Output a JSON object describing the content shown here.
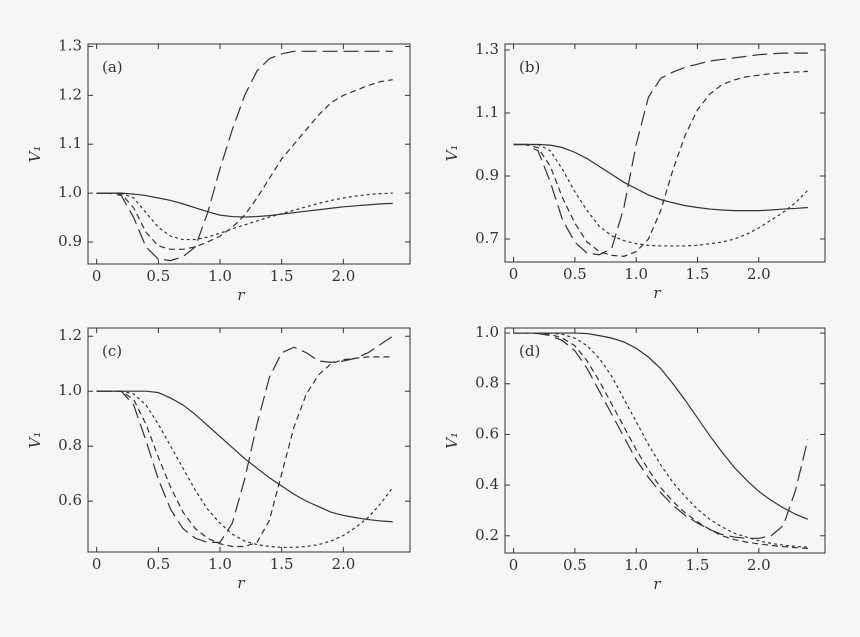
{
  "chart_data": [
    {
      "type": "line",
      "panel_label": "(a)",
      "x_label": "r",
      "y_label": "V₁",
      "x": [
        0,
        0.1,
        0.2,
        0.3,
        0.4,
        0.5,
        0.6,
        0.7,
        0.8,
        0.9,
        1.0,
        1.1,
        1.2,
        1.3,
        1.4,
        1.5,
        1.6,
        1.7,
        1.8,
        1.9,
        2.0,
        2.1,
        2.2,
        2.3,
        2.4
      ],
      "xlim": [
        -0.07,
        2.54
      ],
      "xticks": [
        0,
        0.5,
        {
          "value": 1,
          "label": "1.0"
        },
        1.5,
        {
          "value": 2,
          "label": "2.0"
        }
      ],
      "ylim": [
        0.855,
        1.305
      ],
      "yticks": [
        0.9,
        {
          "value": 1,
          "label": "1.0"
        },
        1.1,
        1.2,
        1.3
      ],
      "grid": false,
      "series": [
        {
          "color": "#333333",
          "dash": "solid",
          "values": [
            1.0,
            1.0,
            1.0,
            0.998,
            0.995,
            0.99,
            0.985,
            0.978,
            0.97,
            0.962,
            0.955,
            0.952,
            0.951,
            0.952,
            0.954,
            0.957,
            0.96,
            0.963,
            0.966,
            0.969,
            0.972,
            0.974,
            0.976,
            0.978,
            0.979
          ]
        },
        {
          "color": "#333333",
          "dash": "dotted",
          "values": [
            1.0,
            1.0,
            1.0,
            0.99,
            0.96,
            0.93,
            0.912,
            0.905,
            0.905,
            0.91,
            0.918,
            0.927,
            0.935,
            0.943,
            0.951,
            0.958,
            0.965,
            0.972,
            0.979,
            0.985,
            0.99,
            0.994,
            0.997,
            0.999,
            1.0
          ]
        },
        {
          "color": "#333333",
          "dash": "dashed",
          "values": [
            1.0,
            1.0,
            0.998,
            0.97,
            0.92,
            0.892,
            0.885,
            0.885,
            0.89,
            0.9,
            0.912,
            0.93,
            0.955,
            0.99,
            1.03,
            1.07,
            1.1,
            1.13,
            1.16,
            1.185,
            1.2,
            1.21,
            1.22,
            1.228,
            1.232
          ]
        },
        {
          "color": "#333333",
          "dash": "longdash",
          "values": [
            1.0,
            1.0,
            0.995,
            0.95,
            0.89,
            0.865,
            0.862,
            0.87,
            0.89,
            0.96,
            1.05,
            1.13,
            1.2,
            1.25,
            1.275,
            1.285,
            1.29,
            1.29,
            1.29,
            1.29,
            1.29,
            1.29,
            1.29,
            1.29,
            1.29
          ]
        }
      ]
    },
    {
      "type": "line",
      "panel_label": "(b)",
      "x_label": "r",
      "y_label": "V₁",
      "x": [
        0,
        0.1,
        0.2,
        0.3,
        0.4,
        0.5,
        0.6,
        0.7,
        0.8,
        0.9,
        1.0,
        1.1,
        1.2,
        1.3,
        1.4,
        1.5,
        1.6,
        1.7,
        1.8,
        1.9,
        2.0,
        2.1,
        2.2,
        2.3,
        2.4
      ],
      "xlim": [
        -0.07,
        2.54
      ],
      "xticks": [
        0,
        0.5,
        {
          "value": 1,
          "label": "1.0"
        },
        1.5,
        {
          "value": 2,
          "label": "2.0"
        }
      ],
      "ylim": [
        0.627,
        1.319
      ],
      "yticks": [
        0.7,
        0.9,
        1.1,
        1.3
      ],
      "grid": false,
      "series": [
        {
          "color": "#333333",
          "dash": "solid",
          "values": [
            1.0,
            1.0,
            1.0,
            0.998,
            0.99,
            0.975,
            0.955,
            0.93,
            0.905,
            0.88,
            0.86,
            0.84,
            0.825,
            0.815,
            0.806,
            0.8,
            0.795,
            0.792,
            0.79,
            0.79,
            0.79,
            0.792,
            0.795,
            0.797,
            0.8
          ]
        },
        {
          "color": "#333333",
          "dash": "dotted",
          "values": [
            1.0,
            1.0,
            1.0,
            0.98,
            0.92,
            0.85,
            0.79,
            0.74,
            0.71,
            0.695,
            0.685,
            0.68,
            0.678,
            0.678,
            0.678,
            0.68,
            0.685,
            0.69,
            0.7,
            0.715,
            0.735,
            0.76,
            0.785,
            0.815,
            0.855
          ]
        },
        {
          "color": "#333333",
          "dash": "dashed",
          "values": [
            1.0,
            1.0,
            0.99,
            0.93,
            0.83,
            0.75,
            0.69,
            0.66,
            0.648,
            0.645,
            0.66,
            0.7,
            0.79,
            0.92,
            1.03,
            1.11,
            1.16,
            1.19,
            1.205,
            1.215,
            1.22,
            1.225,
            1.228,
            1.23,
            1.232
          ]
        },
        {
          "color": "#333333",
          "dash": "longdash",
          "values": [
            1.0,
            1.0,
            0.98,
            0.88,
            0.76,
            0.69,
            0.655,
            0.65,
            0.67,
            0.8,
            1.0,
            1.15,
            1.21,
            1.23,
            1.245,
            1.255,
            1.265,
            1.27,
            1.275,
            1.28,
            1.285,
            1.288,
            1.29,
            1.29,
            1.29
          ]
        }
      ]
    },
    {
      "type": "line",
      "panel_label": "(c)",
      "x_label": "r",
      "y_label": "V₁",
      "x": [
        0,
        0.1,
        0.2,
        0.3,
        0.4,
        0.5,
        0.6,
        0.7,
        0.8,
        0.9,
        1.0,
        1.1,
        1.2,
        1.3,
        1.4,
        1.5,
        1.6,
        1.7,
        1.8,
        1.9,
        2.0,
        2.1,
        2.2,
        2.3,
        2.4
      ],
      "xlim": [
        -0.07,
        2.54
      ],
      "xticks": [
        0,
        0.5,
        {
          "value": 1,
          "label": "1.0"
        },
        1.5,
        {
          "value": 2,
          "label": "2.0"
        }
      ],
      "ylim": [
        0.415,
        1.23
      ],
      "yticks": [
        0.6,
        0.8,
        {
          "value": 1,
          "label": "1.0"
        },
        1.2
      ],
      "grid": false,
      "series": [
        {
          "color": "#333333",
          "dash": "solid",
          "values": [
            1.0,
            1.0,
            1.0,
            1.0,
            1.0,
            0.995,
            0.975,
            0.95,
            0.915,
            0.875,
            0.835,
            0.795,
            0.755,
            0.72,
            0.685,
            0.655,
            0.625,
            0.6,
            0.58,
            0.56,
            0.548,
            0.54,
            0.533,
            0.528,
            0.525
          ]
        },
        {
          "color": "#333333",
          "dash": "dotted",
          "values": [
            1.0,
            1.0,
            1.0,
            0.99,
            0.95,
            0.88,
            0.8,
            0.72,
            0.64,
            0.57,
            0.52,
            0.48,
            0.455,
            0.442,
            0.435,
            0.432,
            0.432,
            0.435,
            0.442,
            0.455,
            0.475,
            0.505,
            0.54,
            0.59,
            0.65
          ]
        },
        {
          "color": "#333333",
          "dash": "dashed",
          "values": [
            1.0,
            1.0,
            1.0,
            0.97,
            0.88,
            0.76,
            0.65,
            0.56,
            0.5,
            0.465,
            0.445,
            0.435,
            0.435,
            0.45,
            0.53,
            0.7,
            0.87,
            0.99,
            1.06,
            1.1,
            1.115,
            1.12,
            1.125,
            1.125,
            1.125
          ]
        },
        {
          "color": "#333333",
          "dash": "longdash",
          "values": [
            1.0,
            1.0,
            1.0,
            0.95,
            0.82,
            0.68,
            0.57,
            0.5,
            0.465,
            0.45,
            0.45,
            0.52,
            0.68,
            0.88,
            1.05,
            1.14,
            1.16,
            1.14,
            1.11,
            1.105,
            1.11,
            1.12,
            1.14,
            1.17,
            1.2
          ]
        }
      ]
    },
    {
      "type": "line",
      "panel_label": "(d)",
      "x_label": "r",
      "y_label": "V₁",
      "x": [
        0,
        0.1,
        0.2,
        0.3,
        0.4,
        0.5,
        0.6,
        0.7,
        0.8,
        0.9,
        1.0,
        1.1,
        1.2,
        1.3,
        1.4,
        1.5,
        1.6,
        1.7,
        1.8,
        1.9,
        2.0,
        2.1,
        2.2,
        2.3,
        2.4
      ],
      "xlim": [
        -0.07,
        2.54
      ],
      "xticks": [
        0,
        0.5,
        {
          "value": 1,
          "label": "1.0"
        },
        1.5,
        {
          "value": 2,
          "label": "2.0"
        }
      ],
      "ylim": [
        0.132,
        1.02
      ],
      "yticks": [
        0.2,
        0.4,
        0.6,
        0.8,
        {
          "value": 1,
          "label": "1.0"
        }
      ],
      "grid": false,
      "series": [
        {
          "color": "#333333",
          "dash": "solid",
          "values": [
            1.0,
            1.0,
            1.0,
            1.0,
            1.0,
            1.0,
            0.998,
            0.99,
            0.98,
            0.965,
            0.94,
            0.905,
            0.86,
            0.8,
            0.735,
            0.665,
            0.595,
            0.53,
            0.47,
            0.42,
            0.375,
            0.34,
            0.31,
            0.285,
            0.265
          ]
        },
        {
          "color": "#333333",
          "dash": "dotted",
          "values": [
            1.0,
            1.0,
            1.0,
            1.0,
            0.995,
            0.98,
            0.95,
            0.9,
            0.83,
            0.74,
            0.65,
            0.56,
            0.48,
            0.41,
            0.355,
            0.305,
            0.265,
            0.235,
            0.21,
            0.195,
            0.18,
            0.17,
            0.163,
            0.158,
            0.155
          ]
        },
        {
          "color": "#333333",
          "dash": "dashed",
          "values": [
            1.0,
            1.0,
            1.0,
            0.995,
            0.98,
            0.95,
            0.89,
            0.81,
            0.72,
            0.63,
            0.54,
            0.46,
            0.39,
            0.335,
            0.29,
            0.255,
            0.225,
            0.2,
            0.185,
            0.175,
            0.168,
            0.162,
            0.157,
            0.153,
            0.15
          ]
        },
        {
          "color": "#333333",
          "dash": "longdash",
          "values": [
            1.0,
            1.0,
            0.998,
            0.99,
            0.97,
            0.93,
            0.86,
            0.77,
            0.68,
            0.59,
            0.5,
            0.43,
            0.37,
            0.32,
            0.28,
            0.25,
            0.225,
            0.205,
            0.195,
            0.19,
            0.19,
            0.2,
            0.24,
            0.38,
            0.58
          ]
        }
      ]
    }
  ]
}
